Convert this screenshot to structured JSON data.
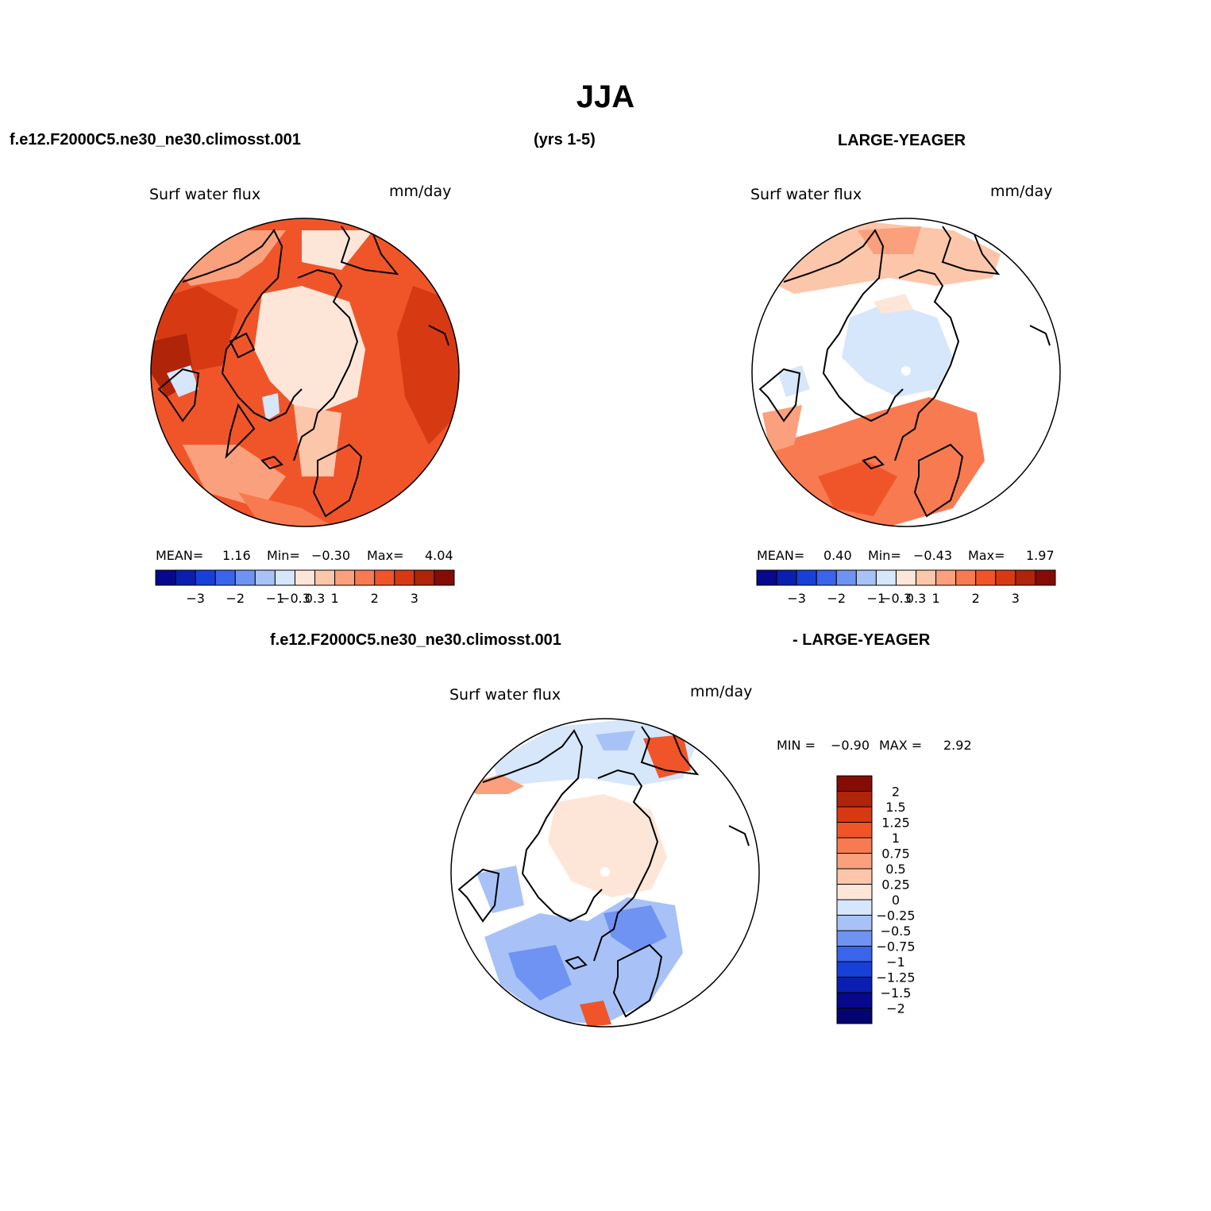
{
  "title": "JJA",
  "header": {
    "case_left": "f.e12.F2000C5.ne30_ne30.climosst.001",
    "years": "(yrs 1-5)",
    "case_right": "LARGE-YEAGER"
  },
  "panels": [
    {
      "variable": "Surf water flux",
      "units": "mm/day",
      "stats": {
        "mean_label": "MEAN=",
        "mean": "1.16",
        "min_label": "Min=",
        "min": "−0.30",
        "max_label": "Max=",
        "max": "4.04"
      }
    },
    {
      "variable": "Surf water flux",
      "units": "mm/day",
      "stats": {
        "mean_label": "MEAN=",
        "mean": "0.40",
        "min_label": "Min=",
        "min": "−0.43",
        "max_label": "Max=",
        "max": "1.97"
      }
    }
  ],
  "colorbar_small": {
    "colors": [
      "#08088e",
      "#0a1fb0",
      "#1740d8",
      "#3b64ec",
      "#6f93f2",
      "#a8c2f7",
      "#d6e6fb",
      "#fde6d8",
      "#fcc6ab",
      "#fba07c",
      "#f87a50",
      "#f0552a",
      "#d73a12",
      "#b0240a",
      "#850c04"
    ],
    "tick_labels": [
      "−3",
      "−2",
      "−1",
      "−0.3",
      "0.3",
      "1",
      "2",
      "3"
    ]
  },
  "difference": {
    "label_left": "f.e12.F2000C5.ne30_ne30.climosst.001",
    "label_right": "- LARGE-YEAGER",
    "variable": "Surf water flux",
    "units": "mm/day",
    "stats": {
      "min_label": "MIN =",
      "min": "−0.90",
      "max_label": "MAX =",
      "max": "2.92"
    },
    "colorbar": {
      "colors": [
        "#850c04",
        "#b0240a",
        "#d73a12",
        "#f0552a",
        "#f87a50",
        "#fba07c",
        "#fcc6ab",
        "#fde6d8",
        "#d6e6fb",
        "#a8c2f7",
        "#6f93f2",
        "#3b64ec",
        "#1740d8",
        "#0a1fb0",
        "#08088e",
        "#040470"
      ],
      "tick_labels": [
        "2",
        "1.5",
        "1.25",
        "1",
        "0.75",
        "0.5",
        "0.25",
        "0",
        "−0.25",
        "−0.5",
        "−0.75",
        "−1",
        "−1.25",
        "−1.5",
        "−2"
      ]
    }
  }
}
